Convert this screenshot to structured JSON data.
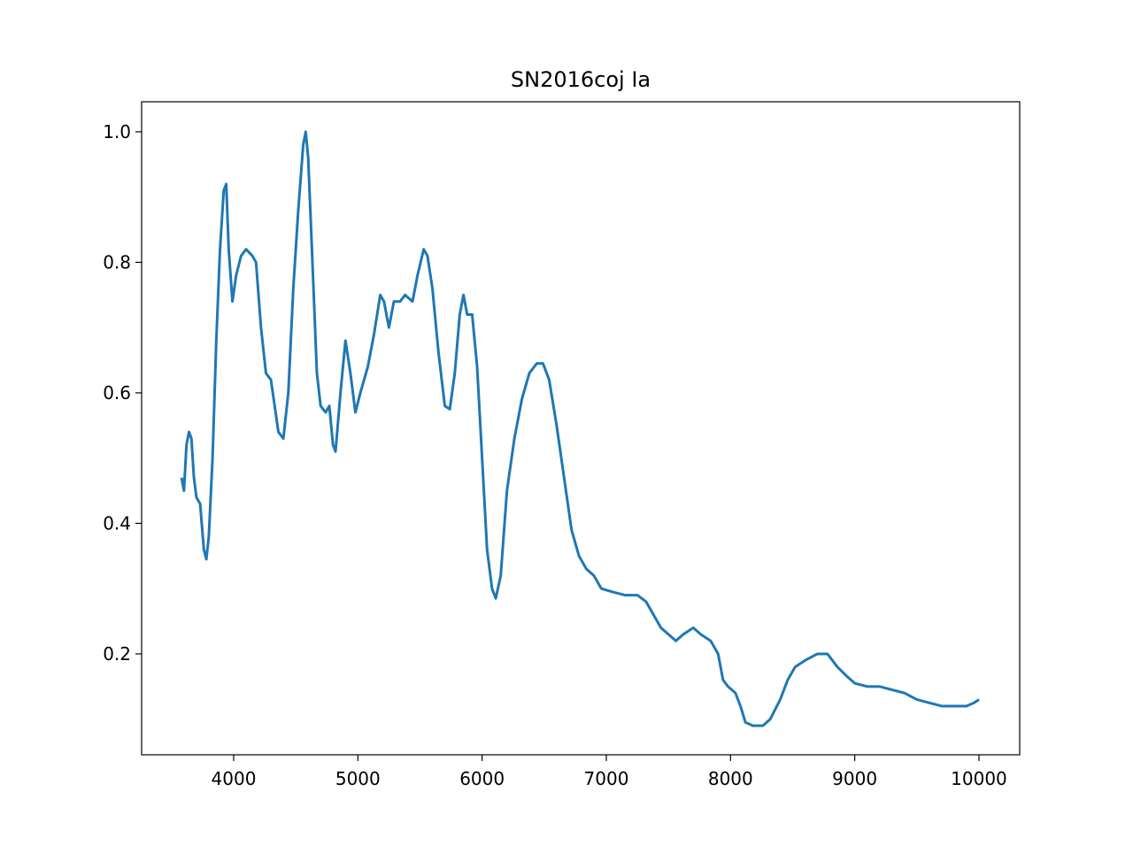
{
  "chart_data": {
    "type": "line",
    "title": "SN2016coj Ia",
    "color": "#1f77b4",
    "x": [
      3580,
      3600,
      3620,
      3640,
      3660,
      3680,
      3700,
      3730,
      3760,
      3780,
      3800,
      3830,
      3860,
      3890,
      3920,
      3940,
      3960,
      3990,
      4020,
      4060,
      4100,
      4150,
      4180,
      4220,
      4260,
      4300,
      4330,
      4360,
      4400,
      4440,
      4480,
      4520,
      4560,
      4580,
      4600,
      4630,
      4670,
      4700,
      4740,
      4770,
      4800,
      4820,
      4860,
      4900,
      4940,
      4980,
      5020,
      5080,
      5130,
      5180,
      5210,
      5250,
      5290,
      5340,
      5380,
      5440,
      5480,
      5530,
      5560,
      5600,
      5650,
      5700,
      5740,
      5780,
      5820,
      5850,
      5880,
      5920,
      5960,
      6000,
      6040,
      6080,
      6110,
      6150,
      6200,
      6260,
      6320,
      6380,
      6440,
      6490,
      6540,
      6600,
      6660,
      6720,
      6780,
      6840,
      6900,
      6960,
      7050,
      7150,
      7250,
      7320,
      7380,
      7440,
      7500,
      7560,
      7620,
      7700,
      7760,
      7840,
      7900,
      7940,
      7980,
      8040,
      8080,
      8120,
      8180,
      8260,
      8320,
      8400,
      8460,
      8520,
      8600,
      8700,
      8780,
      8860,
      8940,
      9000,
      9100,
      9200,
      9300,
      9400,
      9500,
      9600,
      9700,
      9800,
      9900,
      9960,
      10000
    ],
    "values": [
      0.47,
      0.45,
      0.52,
      0.54,
      0.53,
      0.47,
      0.44,
      0.43,
      0.36,
      0.345,
      0.38,
      0.5,
      0.68,
      0.82,
      0.91,
      0.92,
      0.82,
      0.74,
      0.78,
      0.81,
      0.82,
      0.81,
      0.8,
      0.7,
      0.63,
      0.62,
      0.58,
      0.54,
      0.53,
      0.6,
      0.76,
      0.88,
      0.98,
      1.0,
      0.96,
      0.82,
      0.63,
      0.58,
      0.57,
      0.58,
      0.52,
      0.51,
      0.6,
      0.68,
      0.63,
      0.57,
      0.6,
      0.64,
      0.69,
      0.75,
      0.74,
      0.7,
      0.74,
      0.74,
      0.75,
      0.74,
      0.78,
      0.82,
      0.81,
      0.76,
      0.66,
      0.58,
      0.575,
      0.63,
      0.72,
      0.75,
      0.72,
      0.72,
      0.64,
      0.5,
      0.36,
      0.3,
      0.285,
      0.32,
      0.45,
      0.53,
      0.59,
      0.63,
      0.645,
      0.645,
      0.62,
      0.55,
      0.47,
      0.39,
      0.35,
      0.33,
      0.32,
      0.3,
      0.295,
      0.29,
      0.29,
      0.28,
      0.26,
      0.24,
      0.23,
      0.22,
      0.23,
      0.24,
      0.23,
      0.22,
      0.2,
      0.16,
      0.15,
      0.14,
      0.12,
      0.095,
      0.09,
      0.09,
      0.1,
      0.13,
      0.16,
      0.18,
      0.19,
      0.2,
      0.2,
      0.18,
      0.165,
      0.155,
      0.15,
      0.15,
      0.145,
      0.14,
      0.13,
      0.125,
      0.12,
      0.12,
      0.12,
      0.125,
      0.13
    ],
    "xlim": [
      3259,
      10328
    ],
    "xticks": [
      4000,
      5000,
      6000,
      7000,
      8000,
      9000,
      10000
    ],
    "ylim": [
      0.0454,
      1.046
    ],
    "yticks": [
      0.2,
      0.4,
      0.6,
      0.8,
      {
        "value": 1,
        "label": "1.0"
      }
    ]
  }
}
